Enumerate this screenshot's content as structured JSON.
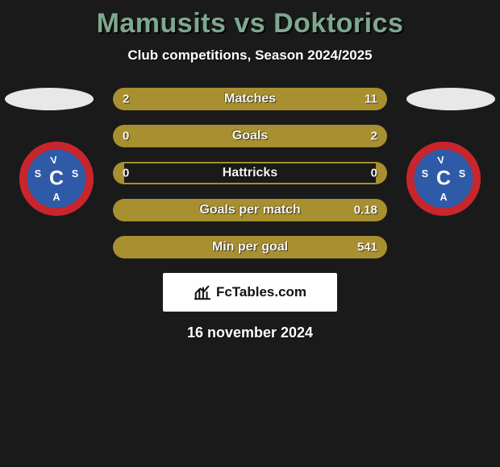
{
  "title_color": "#7fa88f",
  "title": "Mamusits vs Doktorics",
  "subtitle": "Club competitions, Season 2024/2025",
  "date": "16 november 2024",
  "logo_text": "FcTables.com",
  "bar_colors": {
    "left_fill": "#a88f2f",
    "right_fill": "#a88f2f",
    "track_border": "#a88f2f",
    "track_bg": "transparent"
  },
  "badge": {
    "outer": "#c9252c",
    "inner": "#2e5aa8",
    "text": "#ffffff"
  },
  "stats": [
    {
      "label": "Matches",
      "left_val": "2",
      "right_val": "11",
      "left_pct": 15,
      "right_pct": 85
    },
    {
      "label": "Goals",
      "left_val": "0",
      "right_val": "2",
      "left_pct": 4,
      "right_pct": 96
    },
    {
      "label": "Hattricks",
      "left_val": "0",
      "right_val": "0",
      "left_pct": 4,
      "right_pct": 4
    },
    {
      "label": "Goals per match",
      "left_val": "",
      "right_val": "0.18",
      "left_pct": 4,
      "right_pct": 96
    },
    {
      "label": "Min per goal",
      "left_val": "",
      "right_val": "541",
      "left_pct": 4,
      "right_pct": 96
    }
  ]
}
